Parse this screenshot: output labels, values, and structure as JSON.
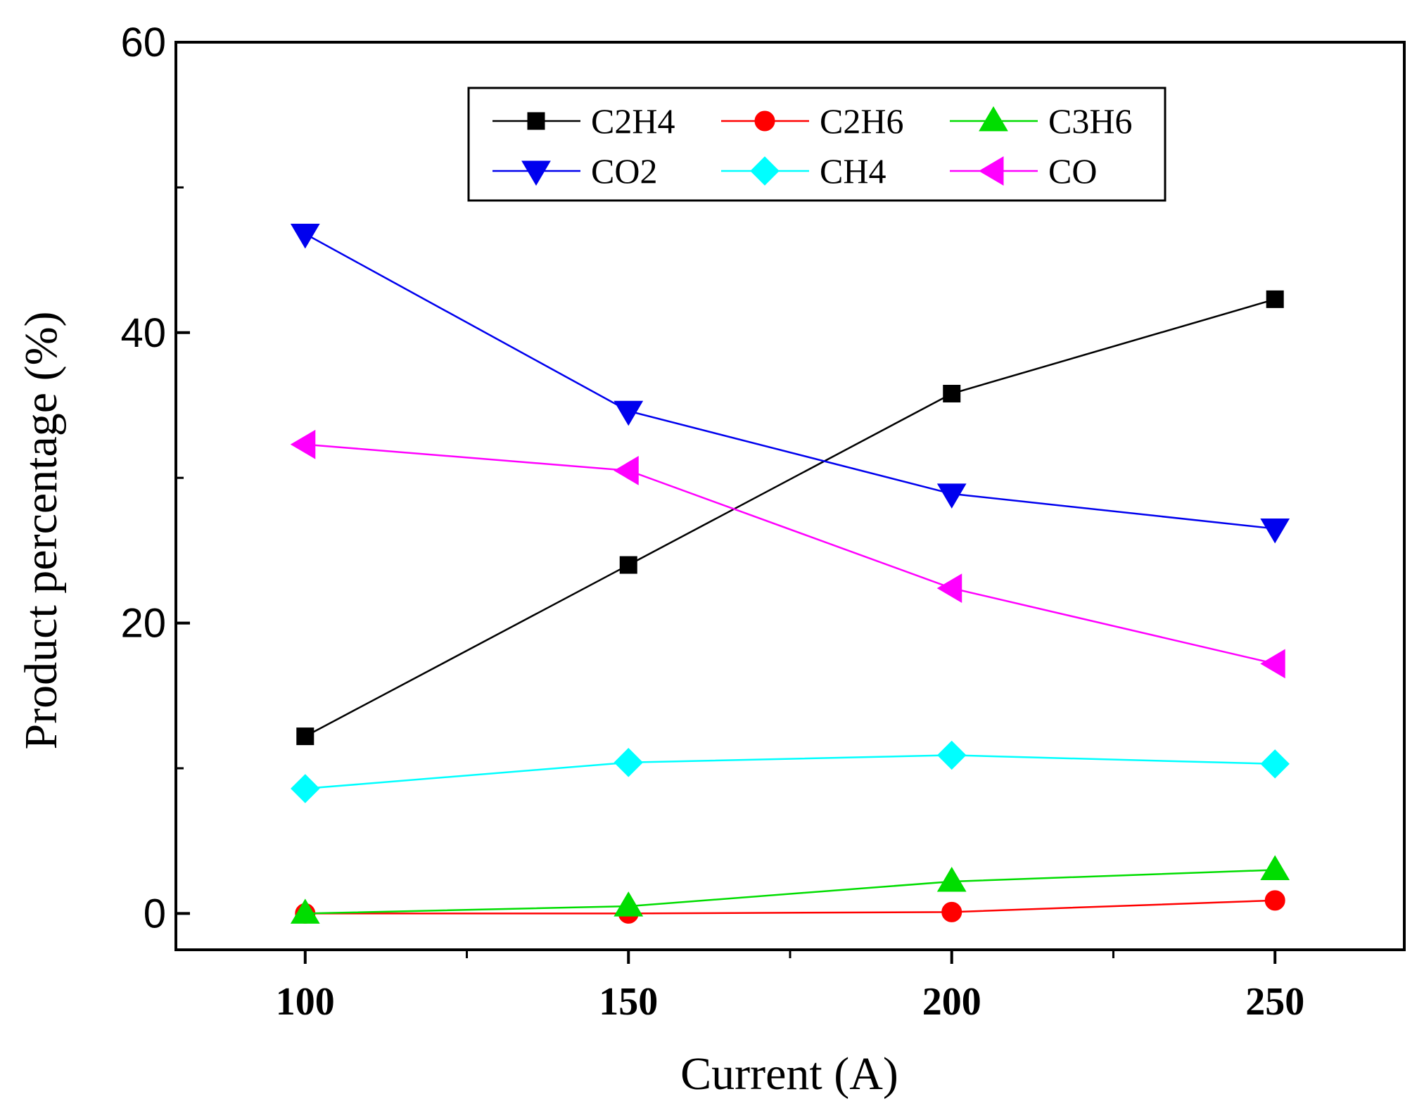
{
  "chart_data": {
    "type": "line",
    "title": "",
    "xlabel": "Current (A)",
    "ylabel": "Product percentage (%)",
    "xlim": [
      80,
      270
    ],
    "ylim": [
      -2.5,
      60
    ],
    "x": [
      100,
      150,
      200,
      250
    ],
    "x_tick_labels": [
      "100",
      "150",
      "200",
      "250"
    ],
    "y_ticks": [
      0,
      20,
      40,
      60
    ],
    "y_tick_labels": [
      "0",
      "20",
      "40",
      "60"
    ],
    "legend_position": "top-center",
    "grid": false,
    "series": [
      {
        "name": "C2H4",
        "color": "#000000",
        "marker": "square",
        "values": [
          12.2,
          24.0,
          35.8,
          42.3
        ]
      },
      {
        "name": "C2H6",
        "color": "#ff0000",
        "marker": "circle",
        "values": [
          0.0,
          0.0,
          0.1,
          0.9
        ]
      },
      {
        "name": "C3H6",
        "color": "#00dd00",
        "marker": "triangle-up",
        "values": [
          0.0,
          0.5,
          2.2,
          3.0
        ]
      },
      {
        "name": "CO2",
        "color": "#0000ee",
        "marker": "triangle-down",
        "values": [
          46.8,
          34.6,
          28.9,
          26.5
        ]
      },
      {
        "name": "CH4",
        "color": "#00ffff",
        "marker": "diamond",
        "values": [
          8.6,
          10.4,
          10.9,
          10.3
        ]
      },
      {
        "name": "CO",
        "color": "#ff00ff",
        "marker": "triangle-left",
        "values": [
          32.3,
          30.5,
          22.4,
          17.2
        ]
      }
    ]
  }
}
